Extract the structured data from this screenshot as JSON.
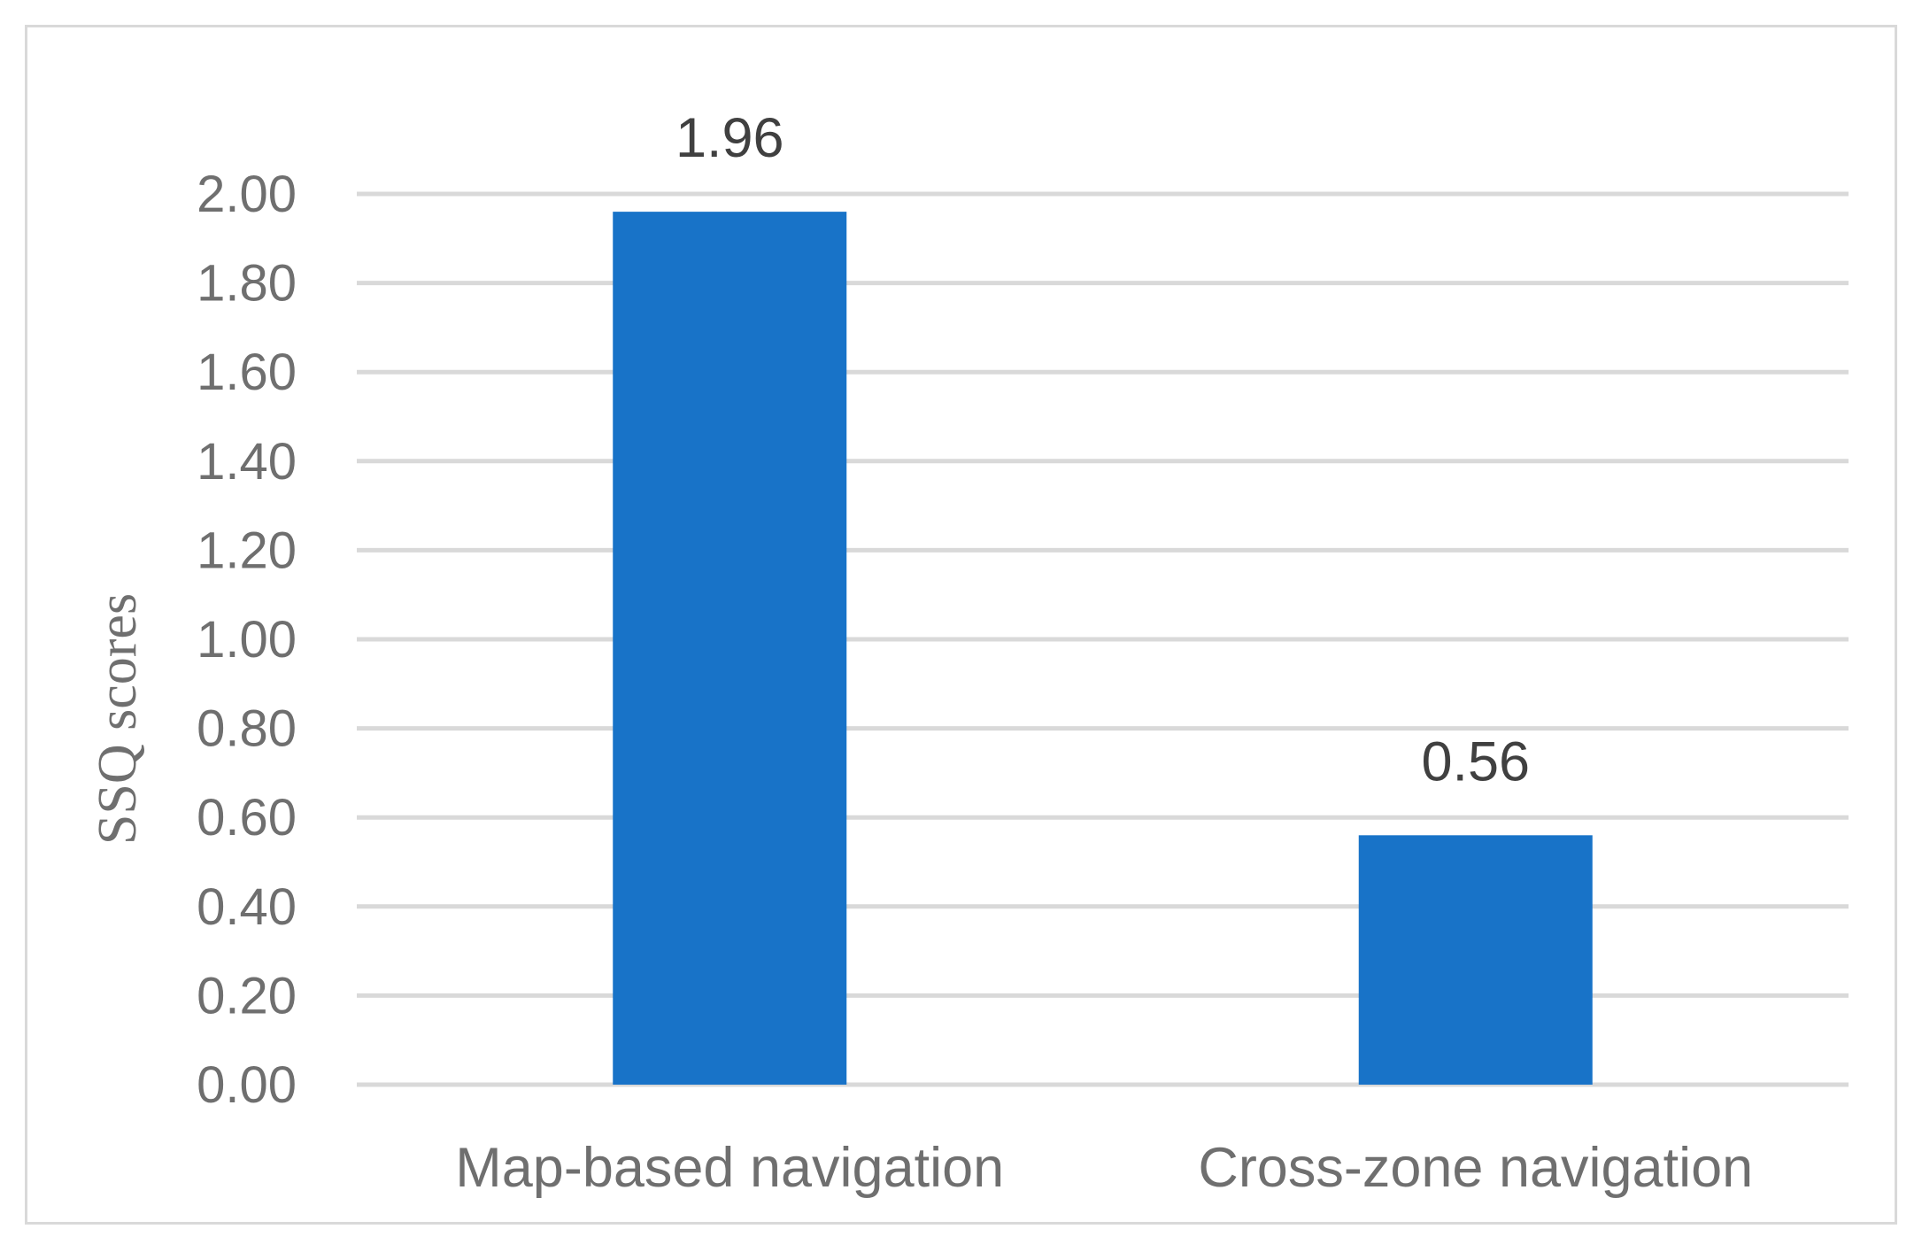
{
  "chart_data": {
    "type": "bar",
    "title": "",
    "xlabel": "",
    "ylabel": "SSQ scores",
    "categories": [
      "Map-based navigation",
      "Cross-zone navigation"
    ],
    "values": [
      1.96,
      0.56
    ],
    "data_labels": [
      "1.96",
      "0.56"
    ],
    "ylim": [
      0,
      2.0
    ],
    "yticks": [
      "0.00",
      "0.20",
      "0.40",
      "0.60",
      "0.80",
      "1.00",
      "1.20",
      "1.40",
      "1.60",
      "1.80",
      "2.00"
    ],
    "grid": true,
    "legend": "none",
    "colors": {
      "bar": "#1873c8",
      "grid": "#d9d9d9",
      "frame": "#d9d9d9",
      "text": "#6f6f6f",
      "data_label": "#404040"
    }
  }
}
